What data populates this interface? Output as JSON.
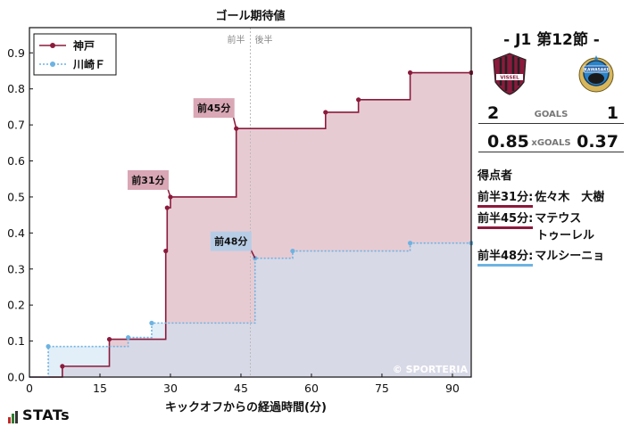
{
  "chart_data": {
    "type": "step-area",
    "title": "ゴール期待値",
    "xlabel": "キックオフからの経過時間(分)",
    "xlim": [
      0,
      94
    ],
    "ylim": [
      0,
      0.97
    ],
    "xticks": [
      0,
      15,
      30,
      45,
      60,
      75,
      90
    ],
    "yticks": [
      0,
      0.1,
      0.2,
      0.3,
      0.4,
      0.5,
      0.6,
      0.7,
      0.8,
      0.9
    ],
    "halftime_x": 47,
    "halftime_labels": {
      "first": "前半",
      "second": "後半"
    },
    "watermark": "© SPORTERIA",
    "legend": {
      "position": "top-left"
    },
    "series": [
      {
        "name": "神戸",
        "color": "#8b1a3c",
        "fill": "#e3c2cb",
        "line_style": "solid",
        "points": [
          [
            0,
            0
          ],
          [
            7,
            0.03
          ],
          [
            17,
            0.105
          ],
          [
            29,
            0.35
          ],
          [
            29.3,
            0.47
          ],
          [
            30,
            0.5
          ],
          [
            44,
            0.69
          ],
          [
            63,
            0.735
          ],
          [
            70,
            0.77
          ],
          [
            81,
            0.845
          ],
          [
            94,
            0.845
          ]
        ]
      },
      {
        "name": "川崎Ｆ",
        "color": "#6db3e2",
        "fill": "#cfe3f3",
        "line_style": "dotted",
        "points": [
          [
            0,
            0
          ],
          [
            4,
            0.085
          ],
          [
            21,
            0.11
          ],
          [
            26,
            0.15
          ],
          [
            48,
            0.33
          ],
          [
            56,
            0.35
          ],
          [
            81,
            0.372
          ],
          [
            94,
            0.372
          ]
        ]
      }
    ],
    "annotations": [
      {
        "label": "前45分",
        "x": 44,
        "y": 0.69,
        "series": 0,
        "color": "#d9a7b5"
      },
      {
        "label": "前31分",
        "x": 30,
        "y": 0.5,
        "series": 0,
        "color": "#d9a7b5"
      },
      {
        "label": "前48分",
        "x": 48,
        "y": 0.33,
        "series": 1,
        "color": "#b7cde5"
      }
    ]
  },
  "match": {
    "matchday": "- J1 第12節 -",
    "home_goals": "2",
    "away_goals": "1",
    "goals_label": "GOALS",
    "home_xg": "0.85",
    "away_xg": "0.37",
    "xg_label": "xGOALS",
    "home_crest_text": "VISSEL",
    "away_crest_text": "KAWASAKI"
  },
  "scorers": {
    "title": "得点者",
    "items": [
      {
        "time": "前半31分:",
        "name": "佐々木　大樹",
        "color": "#8b1a3c"
      },
      {
        "time": "前半45分:",
        "name": "マテウス",
        "name2": "トゥーレル",
        "color": "#8b1a3c"
      },
      {
        "time": "前半48分:",
        "name": "マルシーニョ",
        "color": "#6db3e2"
      }
    ]
  },
  "brand": {
    "name": "STATs"
  }
}
